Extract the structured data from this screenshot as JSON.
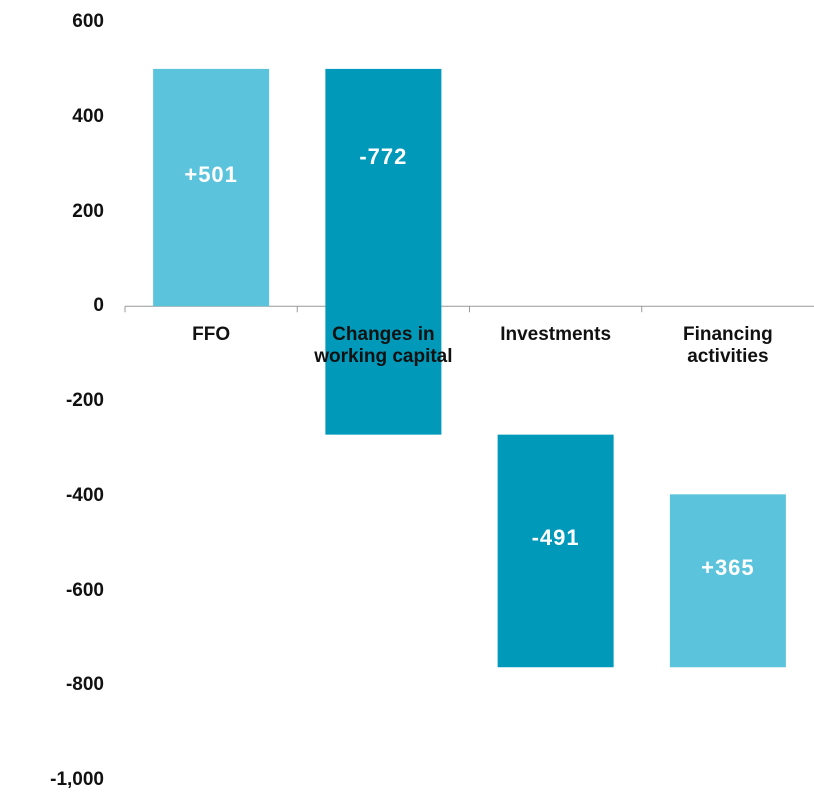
{
  "chart_data": {
    "type": "waterfall",
    "categories": [
      "FFO",
      "Changes in working capital",
      "Investments",
      "Financing activities"
    ],
    "values": [
      501,
      -772,
      -491,
      365
    ],
    "value_labels": [
      "+501",
      "-772",
      "-491",
      "+365"
    ],
    "colors": [
      "#5bc4dc",
      "#0099b9",
      "#0099b9",
      "#5bc4dc"
    ],
    "ylim": [
      -1000,
      600
    ],
    "yticks": [
      600,
      400,
      200,
      0,
      -200,
      -400,
      -600,
      -800,
      {
        "value": -1000,
        "label": "-1,000"
      }
    ],
    "grid": false
  }
}
